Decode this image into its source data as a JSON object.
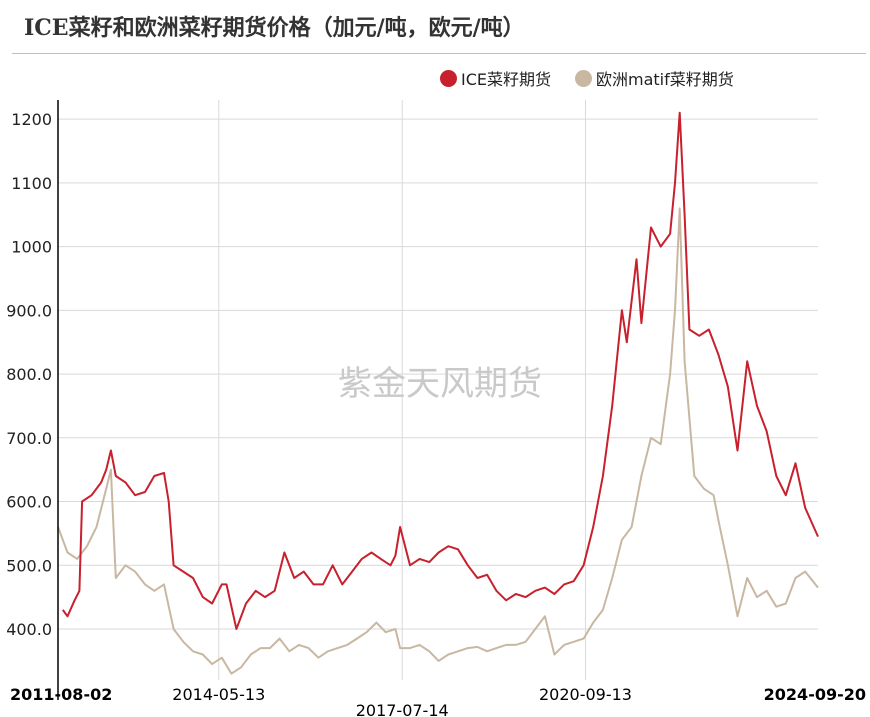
{
  "title": "ICE菜籽和欧洲菜籽期货价格（加元/吨，欧元/吨）",
  "watermark": "紫金天风期货",
  "colors": {
    "ice": "#c8202c",
    "eu": "#c8b8a2",
    "grid": "#d9d9d9",
    "axis": "#000000",
    "text": "#222222"
  },
  "chart_data": {
    "type": "line",
    "ylim": [
      320,
      1230
    ],
    "yticks": [
      400,
      500,
      600,
      700,
      800,
      900,
      1000,
      1100,
      1200
    ],
    "ytick_labels": [
      "400.0",
      "500.0",
      "600.0",
      "700.0",
      "800.0",
      "900.0",
      "1000",
      "1100",
      "1200"
    ],
    "xlim": [
      "2011-08-02",
      "2024-09-20"
    ],
    "xticks": [
      {
        "date": "2011-08-02",
        "label": "2011-08-02",
        "bold": true
      },
      {
        "date": "2014-05-13",
        "label": "2014-05-13",
        "bold": false
      },
      {
        "date": "2017-07-14",
        "label": "2017-07-14",
        "bold": false
      },
      {
        "date": "2020-09-13",
        "label": "2020-09-13",
        "bold": false
      },
      {
        "date": "2024-09-20",
        "label": "2024-09-20",
        "bold": true
      }
    ],
    "series": [
      {
        "name": "ICE菜籽期货",
        "color": "#c8202c",
        "points": [
          [
            "2011-09-01",
            430
          ],
          [
            "2011-10-01",
            420
          ],
          [
            "2011-11-15",
            445
          ],
          [
            "2011-12-15",
            460
          ],
          [
            "2012-01-01",
            600
          ],
          [
            "2012-03-01",
            610
          ],
          [
            "2012-05-01",
            630
          ],
          [
            "2012-06-01",
            650
          ],
          [
            "2012-07-01",
            680
          ],
          [
            "2012-08-01",
            640
          ],
          [
            "2012-10-01",
            630
          ],
          [
            "2012-12-01",
            610
          ],
          [
            "2013-02-01",
            615
          ],
          [
            "2013-04-01",
            640
          ],
          [
            "2013-06-01",
            645
          ],
          [
            "2013-07-01",
            600
          ],
          [
            "2013-08-01",
            500
          ],
          [
            "2013-10-01",
            490
          ],
          [
            "2013-12-01",
            480
          ],
          [
            "2014-02-01",
            450
          ],
          [
            "2014-04-01",
            440
          ],
          [
            "2014-06-01",
            470
          ],
          [
            "2014-07-01",
            470
          ],
          [
            "2014-09-01",
            400
          ],
          [
            "2014-11-01",
            440
          ],
          [
            "2015-01-01",
            460
          ],
          [
            "2015-03-01",
            450
          ],
          [
            "2015-05-01",
            460
          ],
          [
            "2015-07-01",
            520
          ],
          [
            "2015-09-01",
            480
          ],
          [
            "2015-11-01",
            490
          ],
          [
            "2016-01-01",
            470
          ],
          [
            "2016-03-01",
            470
          ],
          [
            "2016-05-01",
            500
          ],
          [
            "2016-07-01",
            470
          ],
          [
            "2016-09-01",
            490
          ],
          [
            "2016-11-01",
            510
          ],
          [
            "2017-01-01",
            520
          ],
          [
            "2017-03-01",
            510
          ],
          [
            "2017-05-01",
            500
          ],
          [
            "2017-06-01",
            515
          ],
          [
            "2017-07-01",
            560
          ],
          [
            "2017-09-01",
            500
          ],
          [
            "2017-11-01",
            510
          ],
          [
            "2018-01-01",
            505
          ],
          [
            "2018-03-01",
            520
          ],
          [
            "2018-05-01",
            530
          ],
          [
            "2018-07-01",
            525
          ],
          [
            "2018-09-01",
            500
          ],
          [
            "2018-11-01",
            480
          ],
          [
            "2019-01-01",
            485
          ],
          [
            "2019-03-01",
            460
          ],
          [
            "2019-05-01",
            445
          ],
          [
            "2019-07-01",
            455
          ],
          [
            "2019-09-01",
            450
          ],
          [
            "2019-11-01",
            460
          ],
          [
            "2020-01-01",
            465
          ],
          [
            "2020-03-01",
            455
          ],
          [
            "2020-05-01",
            470
          ],
          [
            "2020-07-01",
            475
          ],
          [
            "2020-09-01",
            500
          ],
          [
            "2020-11-01",
            560
          ],
          [
            "2021-01-01",
            640
          ],
          [
            "2021-03-01",
            750
          ],
          [
            "2021-05-01",
            900
          ],
          [
            "2021-06-01",
            850
          ],
          [
            "2021-08-01",
            980
          ],
          [
            "2021-09-01",
            880
          ],
          [
            "2021-11-01",
            1030
          ],
          [
            "2022-01-01",
            1000
          ],
          [
            "2022-03-01",
            1020
          ],
          [
            "2022-04-01",
            1100
          ],
          [
            "2022-05-01",
            1210
          ],
          [
            "2022-06-01",
            1050
          ],
          [
            "2022-07-01",
            870
          ],
          [
            "2022-09-01",
            860
          ],
          [
            "2022-11-01",
            870
          ],
          [
            "2023-01-01",
            830
          ],
          [
            "2023-03-01",
            780
          ],
          [
            "2023-05-01",
            680
          ],
          [
            "2023-07-01",
            820
          ],
          [
            "2023-09-01",
            750
          ],
          [
            "2023-11-01",
            710
          ],
          [
            "2024-01-01",
            640
          ],
          [
            "2024-03-01",
            610
          ],
          [
            "2024-05-01",
            660
          ],
          [
            "2024-07-01",
            590
          ],
          [
            "2024-09-20",
            545
          ]
        ]
      },
      {
        "name": "欧洲matif菜籽期货",
        "color": "#c8b8a2",
        "points": [
          [
            "2011-08-02",
            560
          ],
          [
            "2011-10-01",
            520
          ],
          [
            "2011-12-01",
            510
          ],
          [
            "2012-02-01",
            530
          ],
          [
            "2012-04-01",
            560
          ],
          [
            "2012-06-01",
            620
          ],
          [
            "2012-07-01",
            650
          ],
          [
            "2012-08-01",
            480
          ],
          [
            "2012-10-01",
            500
          ],
          [
            "2012-12-01",
            490
          ],
          [
            "2013-02-01",
            470
          ],
          [
            "2013-04-01",
            460
          ],
          [
            "2013-06-01",
            470
          ],
          [
            "2013-08-01",
            400
          ],
          [
            "2013-10-01",
            380
          ],
          [
            "2013-12-01",
            365
          ],
          [
            "2014-02-01",
            360
          ],
          [
            "2014-04-01",
            345
          ],
          [
            "2014-06-01",
            355
          ],
          [
            "2014-08-01",
            330
          ],
          [
            "2014-10-01",
            340
          ],
          [
            "2014-12-01",
            360
          ],
          [
            "2015-02-01",
            370
          ],
          [
            "2015-04-01",
            370
          ],
          [
            "2015-06-01",
            385
          ],
          [
            "2015-08-01",
            365
          ],
          [
            "2015-10-01",
            375
          ],
          [
            "2015-12-01",
            370
          ],
          [
            "2016-02-01",
            355
          ],
          [
            "2016-04-01",
            365
          ],
          [
            "2016-06-01",
            370
          ],
          [
            "2016-08-01",
            375
          ],
          [
            "2016-10-01",
            385
          ],
          [
            "2016-12-01",
            395
          ],
          [
            "2017-02-01",
            410
          ],
          [
            "2017-04-01",
            395
          ],
          [
            "2017-06-01",
            400
          ],
          [
            "2017-07-01",
            370
          ],
          [
            "2017-09-01",
            370
          ],
          [
            "2017-11-01",
            375
          ],
          [
            "2018-01-01",
            365
          ],
          [
            "2018-03-01",
            350
          ],
          [
            "2018-05-01",
            360
          ],
          [
            "2018-07-01",
            365
          ],
          [
            "2018-09-01",
            370
          ],
          [
            "2018-11-01",
            372
          ],
          [
            "2019-01-01",
            365
          ],
          [
            "2019-03-01",
            370
          ],
          [
            "2019-05-01",
            375
          ],
          [
            "2019-07-01",
            375
          ],
          [
            "2019-09-01",
            380
          ],
          [
            "2019-11-01",
            400
          ],
          [
            "2020-01-01",
            420
          ],
          [
            "2020-03-01",
            360
          ],
          [
            "2020-05-01",
            375
          ],
          [
            "2020-07-01",
            380
          ],
          [
            "2020-09-01",
            385
          ],
          [
            "2020-11-01",
            410
          ],
          [
            "2021-01-01",
            430
          ],
          [
            "2021-03-01",
            480
          ],
          [
            "2021-05-01",
            540
          ],
          [
            "2021-07-01",
            560
          ],
          [
            "2021-09-01",
            640
          ],
          [
            "2021-11-01",
            700
          ],
          [
            "2022-01-01",
            690
          ],
          [
            "2022-03-01",
            800
          ],
          [
            "2022-04-01",
            900
          ],
          [
            "2022-05-01",
            1060
          ],
          [
            "2022-06-01",
            820
          ],
          [
            "2022-08-01",
            640
          ],
          [
            "2022-10-01",
            620
          ],
          [
            "2022-12-01",
            610
          ],
          [
            "2023-01-01",
            570
          ],
          [
            "2023-03-01",
            500
          ],
          [
            "2023-05-01",
            420
          ],
          [
            "2023-07-01",
            480
          ],
          [
            "2023-09-01",
            450
          ],
          [
            "2023-11-01",
            460
          ],
          [
            "2024-01-01",
            435
          ],
          [
            "2024-03-01",
            440
          ],
          [
            "2024-05-01",
            480
          ],
          [
            "2024-07-01",
            490
          ],
          [
            "2024-09-20",
            465
          ]
        ]
      }
    ]
  }
}
